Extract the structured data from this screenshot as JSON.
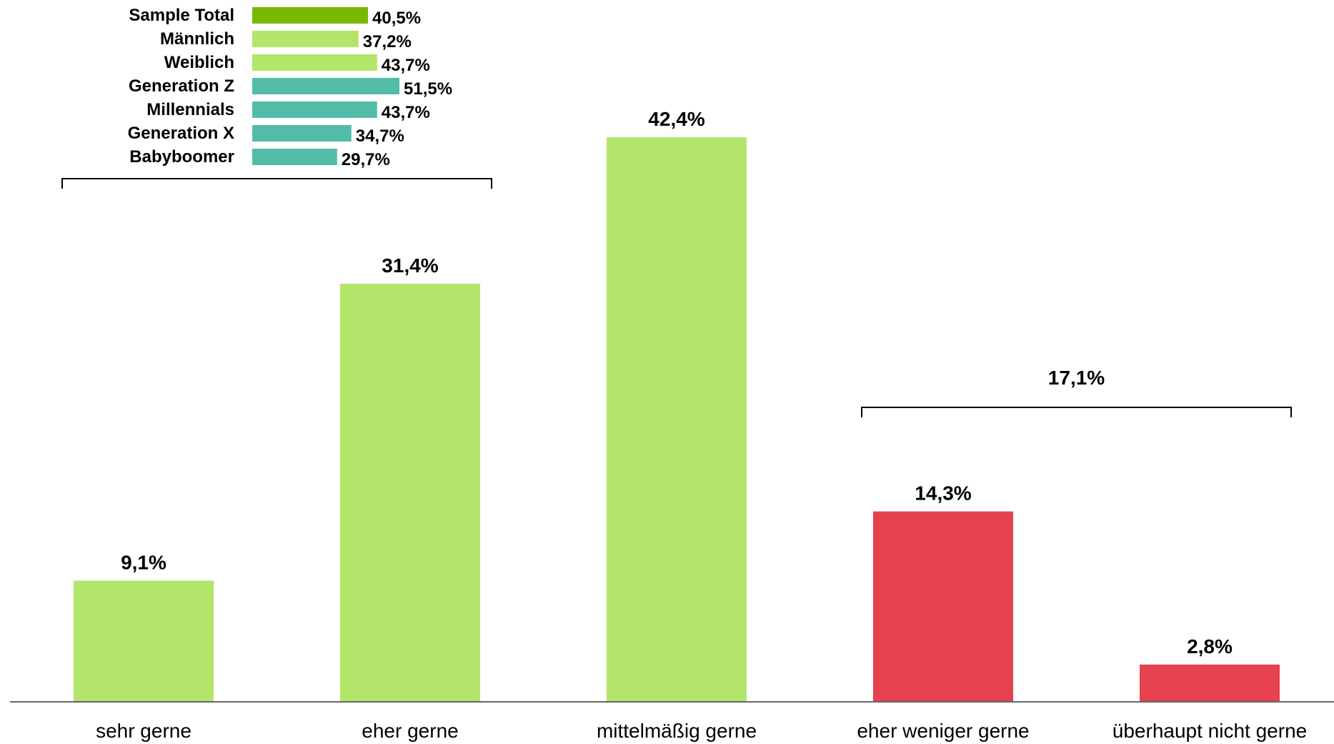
{
  "chart_data": [
    {
      "type": "bar",
      "categories": [
        "sehr gerne",
        "eher gerne",
        "mittelmäßig gerne",
        "eher weniger gerne",
        "überhaupt nicht gerne"
      ],
      "values": [
        9.1,
        31.4,
        42.4,
        14.3,
        2.8
      ],
      "value_labels": [
        "9,1%",
        "31,4%",
        "42,4%",
        "14,3%",
        "2,8%"
      ],
      "colors": [
        "#b3e56a",
        "#b3e56a",
        "#b3e56a",
        "#e5414f",
        "#e5414f"
      ],
      "ylim": [
        0,
        50
      ],
      "grid": false,
      "legend": "none",
      "brackets": [
        {
          "from": 0,
          "to": 1,
          "label": ""
        },
        {
          "from": 3,
          "to": 4,
          "label": "17,1%"
        }
      ]
    },
    {
      "type": "bar",
      "orientation": "horizontal",
      "categories": [
        "Sample Total",
        "Männlich",
        "Weiblich",
        "Generation Z",
        "Millennials",
        "Generation X",
        "Babyboomer"
      ],
      "values": [
        40.5,
        37.2,
        43.7,
        51.5,
        43.7,
        34.7,
        29.7
      ],
      "value_labels": [
        "40,5%",
        "37,2%",
        "43,7%",
        "51,5%",
        "43,7%",
        "34,7%",
        "29,7%"
      ],
      "colors": [
        "#7ab800",
        "#b3e56a",
        "#b3e56a",
        "#52bca9",
        "#52bca9",
        "#52bca9",
        "#52bca9"
      ],
      "xlim": [
        0,
        60
      ]
    }
  ],
  "colors": {
    "axis": "#666666",
    "bracket": "#000000",
    "text": "#000000"
  }
}
